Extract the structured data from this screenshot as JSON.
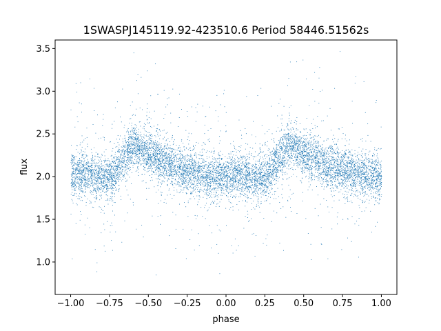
{
  "chart_data": {
    "type": "scatter",
    "title": "1SWASPJ145119.92-423510.6 Period 58446.51562s",
    "xlabel": "phase",
    "ylabel": "flux",
    "xlim": [
      -1.1,
      1.1
    ],
    "ylim": [
      0.62,
      3.6
    ],
    "x_ticks": [
      -1.0,
      -0.75,
      -0.5,
      -0.25,
      0.0,
      0.25,
      0.5,
      0.75,
      1.0
    ],
    "x_tick_labels": [
      "−1.00",
      "−0.75",
      "−0.50",
      "−0.25",
      "0.00",
      "0.25",
      "0.50",
      "0.75",
      "1.00"
    ],
    "y_ticks": [
      1.0,
      1.5,
      2.0,
      2.5,
      3.0,
      3.5
    ],
    "y_tick_labels": [
      "1.0",
      "1.5",
      "2.0",
      "2.5",
      "3.0",
      "3.5"
    ],
    "grid": false,
    "legend": "none",
    "marker_color": "#1f77b4",
    "series": [
      {
        "x_range": [
          -1.0,
          1.0
        ],
        "point_count": 9000,
        "period_in_phase": 1.0,
        "profile": [
          {
            "phase": -1.0,
            "flux": 2.02
          },
          {
            "phase": -0.9,
            "flux": 2.05
          },
          {
            "phase": -0.8,
            "flux": 1.97
          },
          {
            "phase": -0.72,
            "flux": 2.03
          },
          {
            "phase": -0.65,
            "flux": 2.25
          },
          {
            "phase": -0.6,
            "flux": 2.38
          },
          {
            "phase": -0.55,
            "flux": 2.32
          },
          {
            "phase": -0.45,
            "flux": 2.22
          },
          {
            "phase": -0.3,
            "flux": 2.1
          },
          {
            "phase": -0.1,
            "flux": 2.0
          },
          {
            "phase": 0.05,
            "flux": 2.0
          },
          {
            "phase": 0.2,
            "flux": 1.97
          },
          {
            "phase": 0.28,
            "flux": 2.03
          }
        ]
      }
    ]
  }
}
